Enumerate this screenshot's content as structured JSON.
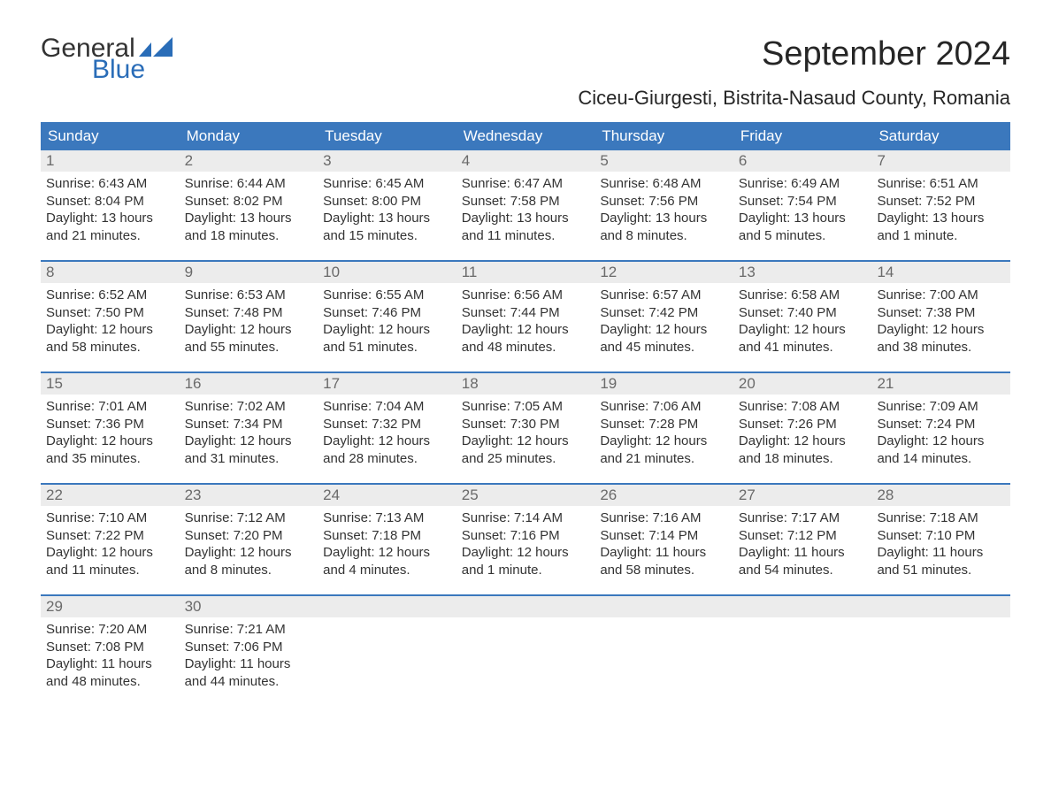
{
  "colors": {
    "header_bg": "#3b78bd",
    "header_text": "#ffffff",
    "daynum_bg": "#ececec",
    "daynum_text": "#6a6a6a",
    "body_text": "#333333",
    "title_text": "#262626",
    "logo_blue": "#2a6db8",
    "week_border": "#3b78bd",
    "page_bg": "#ffffff"
  },
  "logo": {
    "line1": "General",
    "line2": "Blue"
  },
  "title": "September 2024",
  "subtitle": "Ciceu-Giurgesti, Bistrita-Nasaud County, Romania",
  "weekdays": [
    "Sunday",
    "Monday",
    "Tuesday",
    "Wednesday",
    "Thursday",
    "Friday",
    "Saturday"
  ],
  "weeks": [
    [
      {
        "n": "1",
        "sr": "Sunrise: 6:43 AM",
        "ss": "Sunset: 8:04 PM",
        "d1": "Daylight: 13 hours",
        "d2": "and 21 minutes."
      },
      {
        "n": "2",
        "sr": "Sunrise: 6:44 AM",
        "ss": "Sunset: 8:02 PM",
        "d1": "Daylight: 13 hours",
        "d2": "and 18 minutes."
      },
      {
        "n": "3",
        "sr": "Sunrise: 6:45 AM",
        "ss": "Sunset: 8:00 PM",
        "d1": "Daylight: 13 hours",
        "d2": "and 15 minutes."
      },
      {
        "n": "4",
        "sr": "Sunrise: 6:47 AM",
        "ss": "Sunset: 7:58 PM",
        "d1": "Daylight: 13 hours",
        "d2": "and 11 minutes."
      },
      {
        "n": "5",
        "sr": "Sunrise: 6:48 AM",
        "ss": "Sunset: 7:56 PM",
        "d1": "Daylight: 13 hours",
        "d2": "and 8 minutes."
      },
      {
        "n": "6",
        "sr": "Sunrise: 6:49 AM",
        "ss": "Sunset: 7:54 PM",
        "d1": "Daylight: 13 hours",
        "d2": "and 5 minutes."
      },
      {
        "n": "7",
        "sr": "Sunrise: 6:51 AM",
        "ss": "Sunset: 7:52 PM",
        "d1": "Daylight: 13 hours",
        "d2": "and 1 minute."
      }
    ],
    [
      {
        "n": "8",
        "sr": "Sunrise: 6:52 AM",
        "ss": "Sunset: 7:50 PM",
        "d1": "Daylight: 12 hours",
        "d2": "and 58 minutes."
      },
      {
        "n": "9",
        "sr": "Sunrise: 6:53 AM",
        "ss": "Sunset: 7:48 PM",
        "d1": "Daylight: 12 hours",
        "d2": "and 55 minutes."
      },
      {
        "n": "10",
        "sr": "Sunrise: 6:55 AM",
        "ss": "Sunset: 7:46 PM",
        "d1": "Daylight: 12 hours",
        "d2": "and 51 minutes."
      },
      {
        "n": "11",
        "sr": "Sunrise: 6:56 AM",
        "ss": "Sunset: 7:44 PM",
        "d1": "Daylight: 12 hours",
        "d2": "and 48 minutes."
      },
      {
        "n": "12",
        "sr": "Sunrise: 6:57 AM",
        "ss": "Sunset: 7:42 PM",
        "d1": "Daylight: 12 hours",
        "d2": "and 45 minutes."
      },
      {
        "n": "13",
        "sr": "Sunrise: 6:58 AM",
        "ss": "Sunset: 7:40 PM",
        "d1": "Daylight: 12 hours",
        "d2": "and 41 minutes."
      },
      {
        "n": "14",
        "sr": "Sunrise: 7:00 AM",
        "ss": "Sunset: 7:38 PM",
        "d1": "Daylight: 12 hours",
        "d2": "and 38 minutes."
      }
    ],
    [
      {
        "n": "15",
        "sr": "Sunrise: 7:01 AM",
        "ss": "Sunset: 7:36 PM",
        "d1": "Daylight: 12 hours",
        "d2": "and 35 minutes."
      },
      {
        "n": "16",
        "sr": "Sunrise: 7:02 AM",
        "ss": "Sunset: 7:34 PM",
        "d1": "Daylight: 12 hours",
        "d2": "and 31 minutes."
      },
      {
        "n": "17",
        "sr": "Sunrise: 7:04 AM",
        "ss": "Sunset: 7:32 PM",
        "d1": "Daylight: 12 hours",
        "d2": "and 28 minutes."
      },
      {
        "n": "18",
        "sr": "Sunrise: 7:05 AM",
        "ss": "Sunset: 7:30 PM",
        "d1": "Daylight: 12 hours",
        "d2": "and 25 minutes."
      },
      {
        "n": "19",
        "sr": "Sunrise: 7:06 AM",
        "ss": "Sunset: 7:28 PM",
        "d1": "Daylight: 12 hours",
        "d2": "and 21 minutes."
      },
      {
        "n": "20",
        "sr": "Sunrise: 7:08 AM",
        "ss": "Sunset: 7:26 PM",
        "d1": "Daylight: 12 hours",
        "d2": "and 18 minutes."
      },
      {
        "n": "21",
        "sr": "Sunrise: 7:09 AM",
        "ss": "Sunset: 7:24 PM",
        "d1": "Daylight: 12 hours",
        "d2": "and 14 minutes."
      }
    ],
    [
      {
        "n": "22",
        "sr": "Sunrise: 7:10 AM",
        "ss": "Sunset: 7:22 PM",
        "d1": "Daylight: 12 hours",
        "d2": "and 11 minutes."
      },
      {
        "n": "23",
        "sr": "Sunrise: 7:12 AM",
        "ss": "Sunset: 7:20 PM",
        "d1": "Daylight: 12 hours",
        "d2": "and 8 minutes."
      },
      {
        "n": "24",
        "sr": "Sunrise: 7:13 AM",
        "ss": "Sunset: 7:18 PM",
        "d1": "Daylight: 12 hours",
        "d2": "and 4 minutes."
      },
      {
        "n": "25",
        "sr": "Sunrise: 7:14 AM",
        "ss": "Sunset: 7:16 PM",
        "d1": "Daylight: 12 hours",
        "d2": "and 1 minute."
      },
      {
        "n": "26",
        "sr": "Sunrise: 7:16 AM",
        "ss": "Sunset: 7:14 PM",
        "d1": "Daylight: 11 hours",
        "d2": "and 58 minutes."
      },
      {
        "n": "27",
        "sr": "Sunrise: 7:17 AM",
        "ss": "Sunset: 7:12 PM",
        "d1": "Daylight: 11 hours",
        "d2": "and 54 minutes."
      },
      {
        "n": "28",
        "sr": "Sunrise: 7:18 AM",
        "ss": "Sunset: 7:10 PM",
        "d1": "Daylight: 11 hours",
        "d2": "and 51 minutes."
      }
    ],
    [
      {
        "n": "29",
        "sr": "Sunrise: 7:20 AM",
        "ss": "Sunset: 7:08 PM",
        "d1": "Daylight: 11 hours",
        "d2": "and 48 minutes."
      },
      {
        "n": "30",
        "sr": "Sunrise: 7:21 AM",
        "ss": "Sunset: 7:06 PM",
        "d1": "Daylight: 11 hours",
        "d2": "and 44 minutes."
      },
      {
        "empty": true
      },
      {
        "empty": true
      },
      {
        "empty": true
      },
      {
        "empty": true
      },
      {
        "empty": true
      }
    ]
  ]
}
